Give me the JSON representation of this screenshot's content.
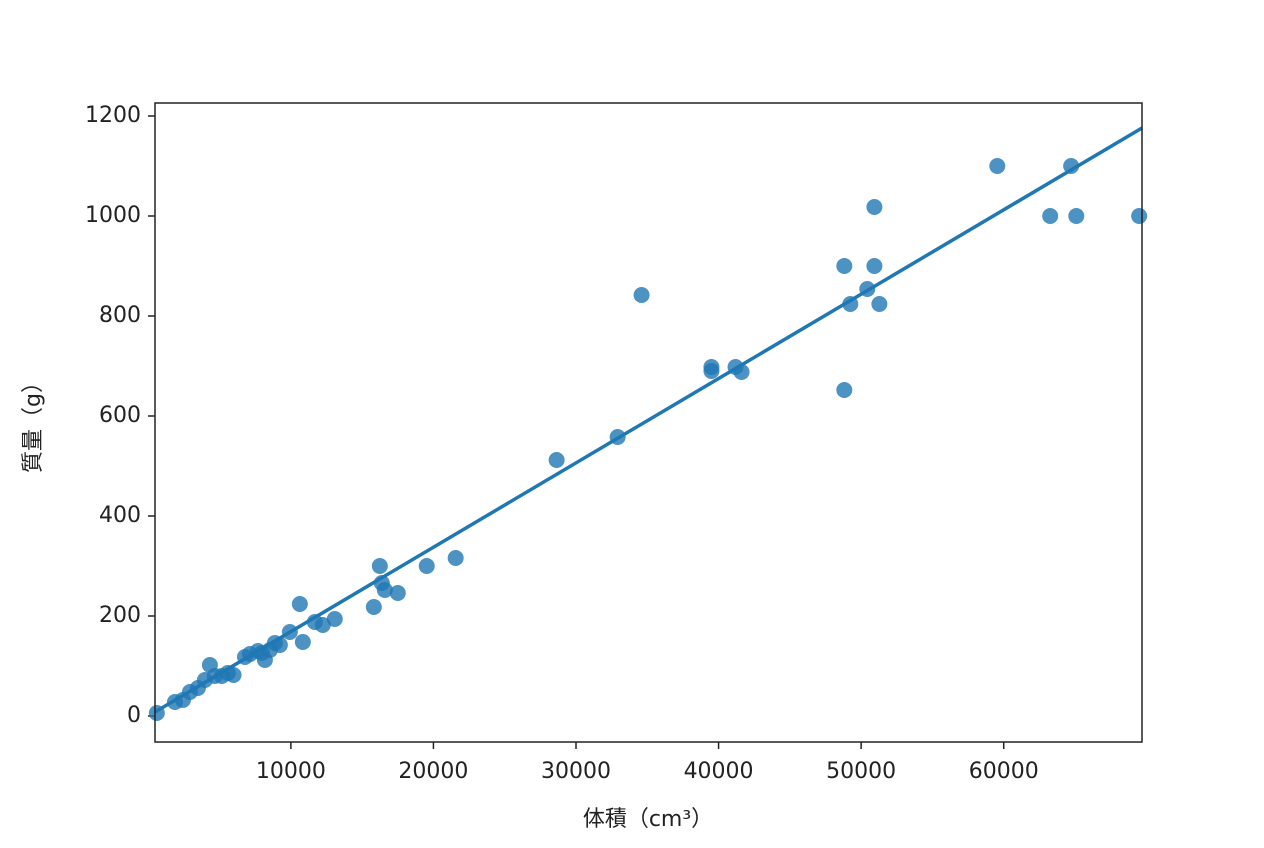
{
  "chart_data": {
    "type": "scatter",
    "x_label": "体積（cm³）",
    "y_label": "質量（g）",
    "series": [
      {
        "color": "#1f77b4",
        "x": [
          600,
          1870,
          2430,
          2920,
          3480,
          3970,
          4320,
          4670,
          5160,
          5580,
          5980,
          6780,
          7130,
          7690,
          7970,
          8180,
          8530,
          8880,
          9230,
          9930,
          10630,
          10840,
          11680,
          12240,
          13080,
          15820,
          16240,
          16380,
          16590,
          17500,
          19530,
          21560,
          28640,
          32920,
          34600,
          39500,
          39500,
          41190,
          41610,
          48820,
          48820,
          49240,
          50430,
          50930,
          50930,
          51280,
          59550,
          63260,
          64730,
          65090,
          69500
        ],
        "values": [
          6,
          28,
          32,
          48,
          56,
          72,
          102,
          80,
          80,
          86,
          82,
          118,
          124,
          130,
          126,
          112,
          132,
          146,
          142,
          168,
          224,
          148,
          188,
          182,
          194,
          218,
          300,
          266,
          252,
          246,
          300,
          316,
          512,
          558,
          842,
          698,
          690,
          698,
          688,
          900,
          652,
          824,
          854,
          1018,
          900,
          824,
          1100,
          1000,
          1100,
          1000,
          1000
        ]
      }
    ],
    "trend_line": {
      "color": "#1f77b4",
      "x": [
        470,
        69700
      ],
      "values": [
        8,
        1176
      ]
    },
    "xlim": [
      470,
      69700
    ],
    "ylim": [
      -52,
      1226
    ],
    "xticks": [
      10000,
      20000,
      30000,
      40000,
      50000,
      60000
    ],
    "yticks": [
      0,
      200,
      400,
      600,
      800,
      1000,
      1200
    ]
  }
}
